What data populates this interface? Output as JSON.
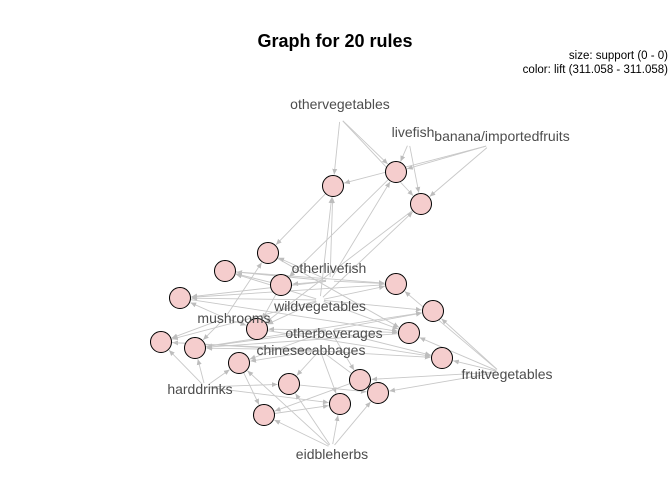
{
  "graph": {
    "title": "Graph for 20 rules",
    "legend_size": "size: support (0 - 0)",
    "legend_color": "color: lift (311.058 - 311.058)",
    "node_fill": "#f5cdcd",
    "edge_color": "#c8c8c8",
    "item_labels": [
      "othervegetables",
      "livefish",
      "banana/importedfruits",
      "otherlivefish",
      "wildvegetables",
      "mushrooms",
      "otherbeverages",
      "chinesecabbages",
      "harddrinks",
      "fruitvegetables",
      "eidbleherbs"
    ],
    "rule_count": 20
  }
}
